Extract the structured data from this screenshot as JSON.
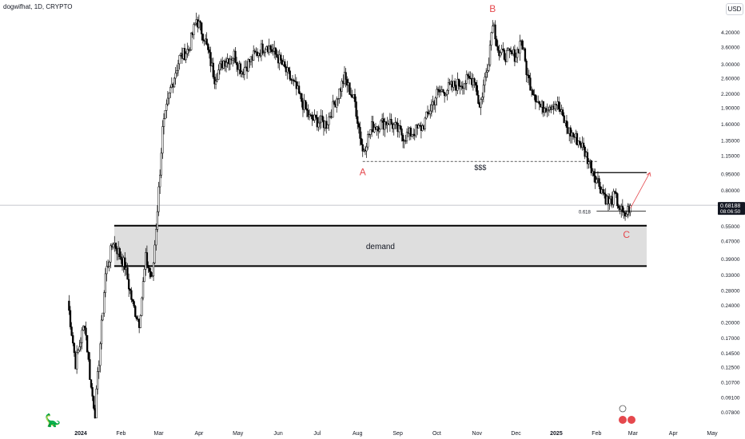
{
  "header": {
    "title": "dogwifhat, 1D, CRYPTO",
    "currency": "USD"
  },
  "price_tag": {
    "value": "0.68188",
    "timer": "08:06:50"
  },
  "annotations": {
    "label_a": "A",
    "label_b": "B",
    "label_c": "C",
    "liquidity": "$$$",
    "fib": "0.618",
    "demand": "demand"
  },
  "colors": {
    "up_candle": "#ffffff",
    "down_candle": "#000000",
    "label_red": "#e5484d",
    "demand_fill": "#dedede",
    "grid_text": "#131722"
  },
  "chart_data": {
    "type": "candlestick",
    "title": "dogwifhat, 1D, CRYPTO",
    "y_scale": "log",
    "ylim": [
      0.056,
      5.3
    ],
    "y_ticks": [
      4.2,
      3.6,
      3.0,
      2.6,
      2.2,
      1.9,
      1.6,
      1.35,
      1.15,
      0.95,
      0.8,
      0.68188,
      0.55,
      0.47,
      0.39,
      0.33,
      0.28,
      0.24,
      0.2,
      0.17,
      0.145,
      0.125,
      0.107,
      0.091,
      0.078
    ],
    "y_tick_labels": [
      "4.20000",
      "3.60000",
      "3.00000",
      "2.60000",
      "2.20000",
      "1.90000",
      "1.60000",
      "1.35000",
      "1.15000",
      "0.95000",
      "0.80000",
      "",
      "0.55000",
      "0.47000",
      "0.39000",
      "0.33000",
      "0.28000",
      "0.24000",
      "0.20000",
      "0.17000",
      "0.14500",
      "0.12500",
      "0.10700",
      "0.09100",
      "0.07800"
    ],
    "x_labels": [
      "2024",
      "Feb",
      "Mar",
      "Apr",
      "May",
      "Jun",
      "Jul",
      "Aug",
      "Sep",
      "Oct",
      "Nov",
      "Dec",
      "2025",
      "Feb",
      "Mar",
      "Apr",
      "May"
    ],
    "x_label_dates": [
      "2024-01-01",
      "2024-02-01",
      "2024-03-01",
      "2024-04-01",
      "2024-05-01",
      "2024-06-01",
      "2024-07-01",
      "2024-08-01",
      "2024-09-01",
      "2024-10-01",
      "2024-11-01",
      "2024-12-01",
      "2025-01-01",
      "2025-02-01",
      "2025-03-01",
      "2025-04-01",
      "2025-05-01"
    ],
    "price_anchors": [
      {
        "date": "2023-12-22",
        "price": 0.25
      },
      {
        "date": "2023-12-28",
        "price": 0.13
      },
      {
        "date": "2024-01-04",
        "price": 0.2
      },
      {
        "date": "2024-01-09",
        "price": 0.1
      },
      {
        "date": "2024-01-12",
        "price": 0.078
      },
      {
        "date": "2024-01-20",
        "price": 0.33
      },
      {
        "date": "2024-01-26",
        "price": 0.47
      },
      {
        "date": "2024-02-04",
        "price": 0.36
      },
      {
        "date": "2024-02-10",
        "price": 0.24
      },
      {
        "date": "2024-02-15",
        "price": 0.2
      },
      {
        "date": "2024-02-20",
        "price": 0.39
      },
      {
        "date": "2024-02-25",
        "price": 0.31
      },
      {
        "date": "2024-03-01",
        "price": 0.8
      },
      {
        "date": "2024-03-04",
        "price": 1.5
      },
      {
        "date": "2024-03-10",
        "price": 2.3
      },
      {
        "date": "2024-03-17",
        "price": 3.2
      },
      {
        "date": "2024-03-24",
        "price": 3.5
      },
      {
        "date": "2024-03-30",
        "price": 4.8
      },
      {
        "date": "2024-04-05",
        "price": 4.0
      },
      {
        "date": "2024-04-13",
        "price": 2.6
      },
      {
        "date": "2024-04-20",
        "price": 3.1
      },
      {
        "date": "2024-04-28",
        "price": 3.3
      },
      {
        "date": "2024-05-04",
        "price": 2.8
      },
      {
        "date": "2024-05-14",
        "price": 3.3
      },
      {
        "date": "2024-05-23",
        "price": 3.7
      },
      {
        "date": "2024-06-01",
        "price": 3.2
      },
      {
        "date": "2024-06-15",
        "price": 2.3
      },
      {
        "date": "2024-06-25",
        "price": 1.7
      },
      {
        "date": "2024-07-08",
        "price": 1.6
      },
      {
        "date": "2024-07-22",
        "price": 2.6
      },
      {
        "date": "2024-07-30",
        "price": 2.0
      },
      {
        "date": "2024-08-05",
        "price": 1.2
      },
      {
        "date": "2024-08-12",
        "price": 1.55
      },
      {
        "date": "2024-08-25",
        "price": 1.65
      },
      {
        "date": "2024-09-06",
        "price": 1.4
      },
      {
        "date": "2024-09-20",
        "price": 1.55
      },
      {
        "date": "2024-10-01",
        "price": 2.2
      },
      {
        "date": "2024-10-15",
        "price": 2.4
      },
      {
        "date": "2024-10-30",
        "price": 2.6
      },
      {
        "date": "2024-11-03",
        "price": 1.9
      },
      {
        "date": "2024-11-10",
        "price": 3.2
      },
      {
        "date": "2024-11-13",
        "price": 4.8
      },
      {
        "date": "2024-11-18",
        "price": 3.3
      },
      {
        "date": "2024-12-01",
        "price": 3.3
      },
      {
        "date": "2024-12-05",
        "price": 3.9
      },
      {
        "date": "2024-12-10",
        "price": 2.6
      },
      {
        "date": "2024-12-20",
        "price": 1.9
      },
      {
        "date": "2025-01-01",
        "price": 2.0
      },
      {
        "date": "2025-01-10",
        "price": 1.5
      },
      {
        "date": "2025-01-20",
        "price": 1.3
      },
      {
        "date": "2025-02-01",
        "price": 0.9
      },
      {
        "date": "2025-02-10",
        "price": 0.7
      },
      {
        "date": "2025-02-15",
        "price": 0.75
      },
      {
        "date": "2025-02-22",
        "price": 0.6
      },
      {
        "date": "2025-02-27",
        "price": 0.68
      }
    ],
    "levels": {
      "a_low": 1.08,
      "liquidity_line": 1.08,
      "resistance": 0.96,
      "fib_618": 0.64,
      "demand_top": 0.55,
      "demand_bottom": 0.36,
      "current": 0.68188
    },
    "markers": {
      "A": {
        "date": "2024-08-05",
        "price": 1.0
      },
      "B": {
        "date": "2024-11-13",
        "price": 5.3
      },
      "C": {
        "date": "2025-02-24",
        "price": 0.53
      }
    },
    "projection": {
      "from": {
        "date": "2025-02-27",
        "price": 0.66
      },
      "to": {
        "date": "2025-03-14",
        "price": 0.96
      }
    }
  }
}
